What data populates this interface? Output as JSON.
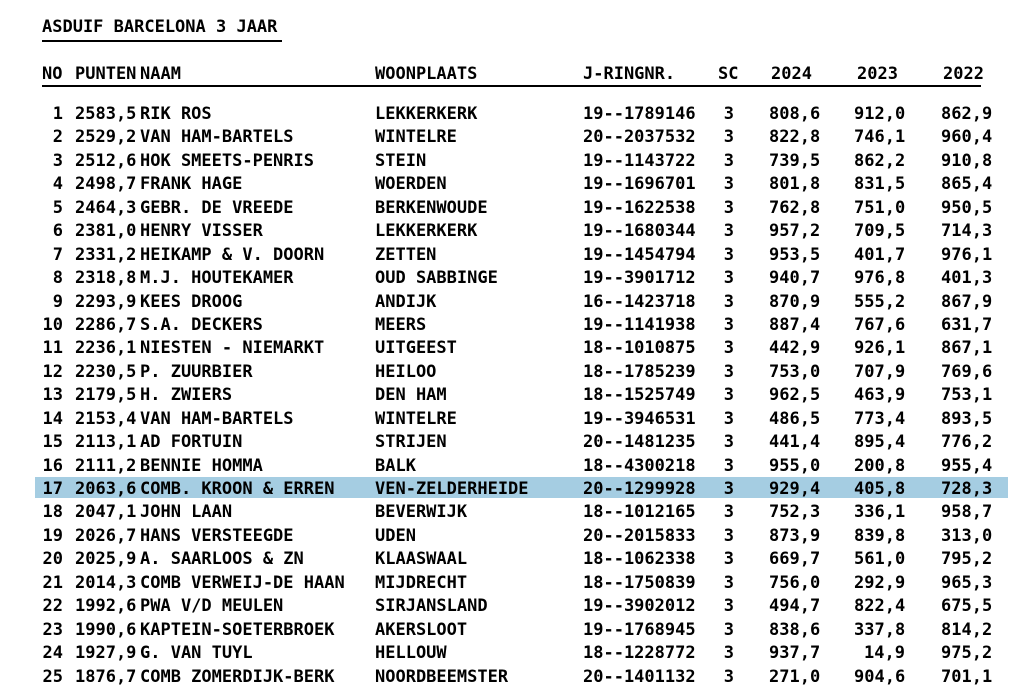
{
  "page": {
    "title": "ASDUIF BARCELONA 3 JAAR",
    "background_color": "#ffffff",
    "text_color": "#000000",
    "highlight_color": "#a5cde2"
  },
  "table": {
    "columns": [
      "NO",
      "PUNTEN",
      "NAAM",
      "WOONPLAATS",
      "J-RINGNR.",
      "SC",
      "2024",
      "2023",
      "2022"
    ],
    "highlighted_row_no": "17",
    "rows": [
      {
        "no": "1",
        "punten": "2583,5",
        "naam": "RIK ROS",
        "woonplaats": "LEKKERKERK",
        "ringnr": "19--1789146",
        "sc": "3",
        "y2024": "808,6",
        "y2023": "912,0",
        "y2022": "862,9"
      },
      {
        "no": "2",
        "punten": "2529,2",
        "naam": "VAN HAM-BARTELS",
        "woonplaats": "WINTELRE",
        "ringnr": "20--2037532",
        "sc": "3",
        "y2024": "822,8",
        "y2023": "746,1",
        "y2022": "960,4"
      },
      {
        "no": "3",
        "punten": "2512,6",
        "naam": "HOK SMEETS-PENRIS",
        "woonplaats": "STEIN",
        "ringnr": "19--1143722",
        "sc": "3",
        "y2024": "739,5",
        "y2023": "862,2",
        "y2022": "910,8"
      },
      {
        "no": "4",
        "punten": "2498,7",
        "naam": "FRANK HAGE",
        "woonplaats": "WOERDEN",
        "ringnr": "19--1696701",
        "sc": "3",
        "y2024": "801,8",
        "y2023": "831,5",
        "y2022": "865,4"
      },
      {
        "no": "5",
        "punten": "2464,3",
        "naam": "GEBR. DE VREEDE",
        "woonplaats": "BERKENWOUDE",
        "ringnr": "19--1622538",
        "sc": "3",
        "y2024": "762,8",
        "y2023": "751,0",
        "y2022": "950,5"
      },
      {
        "no": "6",
        "punten": "2381,0",
        "naam": "HENRY VISSER",
        "woonplaats": "LEKKERKERK",
        "ringnr": "19--1680344",
        "sc": "3",
        "y2024": "957,2",
        "y2023": "709,5",
        "y2022": "714,3"
      },
      {
        "no": "7",
        "punten": "2331,2",
        "naam": "HEIKAMP & V. DOORN",
        "woonplaats": "ZETTEN",
        "ringnr": "19--1454794",
        "sc": "3",
        "y2024": "953,5",
        "y2023": "401,7",
        "y2022": "976,1"
      },
      {
        "no": "8",
        "punten": "2318,8",
        "naam": "M.J. HOUTEKAMER",
        "woonplaats": "OUD SABBINGE",
        "ringnr": "19--3901712",
        "sc": "3",
        "y2024": "940,7",
        "y2023": "976,8",
        "y2022": "401,3"
      },
      {
        "no": "9",
        "punten": "2293,9",
        "naam": "KEES DROOG",
        "woonplaats": "ANDIJK",
        "ringnr": "16--1423718",
        "sc": "3",
        "y2024": "870,9",
        "y2023": "555,2",
        "y2022": "867,9"
      },
      {
        "no": "10",
        "punten": "2286,7",
        "naam": "S.A. DECKERS",
        "woonplaats": "MEERS",
        "ringnr": "19--1141938",
        "sc": "3",
        "y2024": "887,4",
        "y2023": "767,6",
        "y2022": "631,7"
      },
      {
        "no": "11",
        "punten": "2236,1",
        "naam": "NIESTEN - NIEMARKT",
        "woonplaats": "UITGEEST",
        "ringnr": "18--1010875",
        "sc": "3",
        "y2024": "442,9",
        "y2023": "926,1",
        "y2022": "867,1"
      },
      {
        "no": "12",
        "punten": "2230,5",
        "naam": "P. ZUURBIER",
        "woonplaats": "HEILOO",
        "ringnr": "18--1785239",
        "sc": "3",
        "y2024": "753,0",
        "y2023": "707,9",
        "y2022": "769,6"
      },
      {
        "no": "13",
        "punten": "2179,5",
        "naam": "H. ZWIERS",
        "woonplaats": "DEN HAM",
        "ringnr": "18--1525749",
        "sc": "3",
        "y2024": "962,5",
        "y2023": "463,9",
        "y2022": "753,1"
      },
      {
        "no": "14",
        "punten": "2153,4",
        "naam": "VAN HAM-BARTELS",
        "woonplaats": "WINTELRE",
        "ringnr": "19--3946531",
        "sc": "3",
        "y2024": "486,5",
        "y2023": "773,4",
        "y2022": "893,5"
      },
      {
        "no": "15",
        "punten": "2113,1",
        "naam": "AD FORTUIN",
        "woonplaats": "STRIJEN",
        "ringnr": "20--1481235",
        "sc": "3",
        "y2024": "441,4",
        "y2023": "895,4",
        "y2022": "776,2"
      },
      {
        "no": "16",
        "punten": "2111,2",
        "naam": "BENNIE HOMMA",
        "woonplaats": "BALK",
        "ringnr": "18--4300218",
        "sc": "3",
        "y2024": "955,0",
        "y2023": "200,8",
        "y2022": "955,4"
      },
      {
        "no": "17",
        "punten": "2063,6",
        "naam": "COMB. KROON & ERREN",
        "woonplaats": "VEN-ZELDERHEIDE",
        "ringnr": "20--1299928",
        "sc": "3",
        "y2024": "929,4",
        "y2023": "405,8",
        "y2022": "728,3"
      },
      {
        "no": "18",
        "punten": "2047,1",
        "naam": "JOHN LAAN",
        "woonplaats": "BEVERWIJK",
        "ringnr": "18--1012165",
        "sc": "3",
        "y2024": "752,3",
        "y2023": "336,1",
        "y2022": "958,7"
      },
      {
        "no": "19",
        "punten": "2026,7",
        "naam": "HANS VERSTEEGDE",
        "woonplaats": "UDEN",
        "ringnr": "20--2015833",
        "sc": "3",
        "y2024": "873,9",
        "y2023": "839,8",
        "y2022": "313,0"
      },
      {
        "no": "20",
        "punten": "2025,9",
        "naam": "A. SAARLOOS & ZN",
        "woonplaats": "KLAASWAAL",
        "ringnr": "18--1062338",
        "sc": "3",
        "y2024": "669,7",
        "y2023": "561,0",
        "y2022": "795,2"
      },
      {
        "no": "21",
        "punten": "2014,3",
        "naam": "COMB VERWEIJ-DE HAAN",
        "woonplaats": "MIJDRECHT",
        "ringnr": "18--1750839",
        "sc": "3",
        "y2024": "756,0",
        "y2023": "292,9",
        "y2022": "965,3"
      },
      {
        "no": "22",
        "punten": "1992,6",
        "naam": "PWA V/D MEULEN",
        "woonplaats": "SIRJANSLAND",
        "ringnr": "19--3902012",
        "sc": "3",
        "y2024": "494,7",
        "y2023": "822,4",
        "y2022": "675,5"
      },
      {
        "no": "23",
        "punten": "1990,6",
        "naam": "KAPTEIN-SOETERBROEK",
        "woonplaats": "AKERSLOOT",
        "ringnr": "19--1768945",
        "sc": "3",
        "y2024": "838,6",
        "y2023": "337,8",
        "y2022": "814,2"
      },
      {
        "no": "24",
        "punten": "1927,9",
        "naam": "G. VAN TUYL",
        "woonplaats": "HELLOUW",
        "ringnr": "18--1228772",
        "sc": "3",
        "y2024": "937,7",
        "y2023": "14,9",
        "y2022": "975,2"
      },
      {
        "no": "25",
        "punten": "1876,7",
        "naam": "COMB ZOMERDIJK-BERK",
        "woonplaats": "NOORDBEEMSTER",
        "ringnr": "20--1401132",
        "sc": "3",
        "y2024": "271,0",
        "y2023": "904,6",
        "y2022": "701,1"
      }
    ]
  }
}
